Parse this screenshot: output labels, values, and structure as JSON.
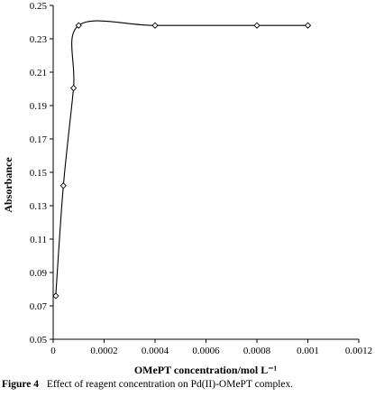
{
  "chart_data": {
    "type": "line",
    "xlabel": "OMePT concentration/mol L⁻¹",
    "ylabel": "Absorbance",
    "xlim": [
      0,
      0.0012
    ],
    "ylim": [
      0.05,
      0.25
    ],
    "x_ticks": [
      "0",
      "0.0002",
      "0.0004",
      "0.0006",
      "0.0008",
      "0.001",
      "0.0012"
    ],
    "y_ticks": [
      "0.05",
      "0.07",
      "0.09",
      "0.11",
      "0.13",
      "0.15",
      "0.17",
      "0.19",
      "0.21",
      "0.23",
      "0.25"
    ],
    "grid": false,
    "marker": "diamond",
    "smooth": true,
    "series": [
      {
        "x": [
          1e-05,
          4e-05,
          8e-05,
          0.0001,
          0.0004,
          0.0008,
          0.001
        ],
        "y": [
          0.076,
          0.142,
          0.2005,
          0.238,
          0.238,
          0.238,
          0.238
        ]
      }
    ]
  },
  "caption": {
    "label": "Figure 4",
    "text": "Effect of reagent concentration on Pd(II)-OMePT complex."
  }
}
